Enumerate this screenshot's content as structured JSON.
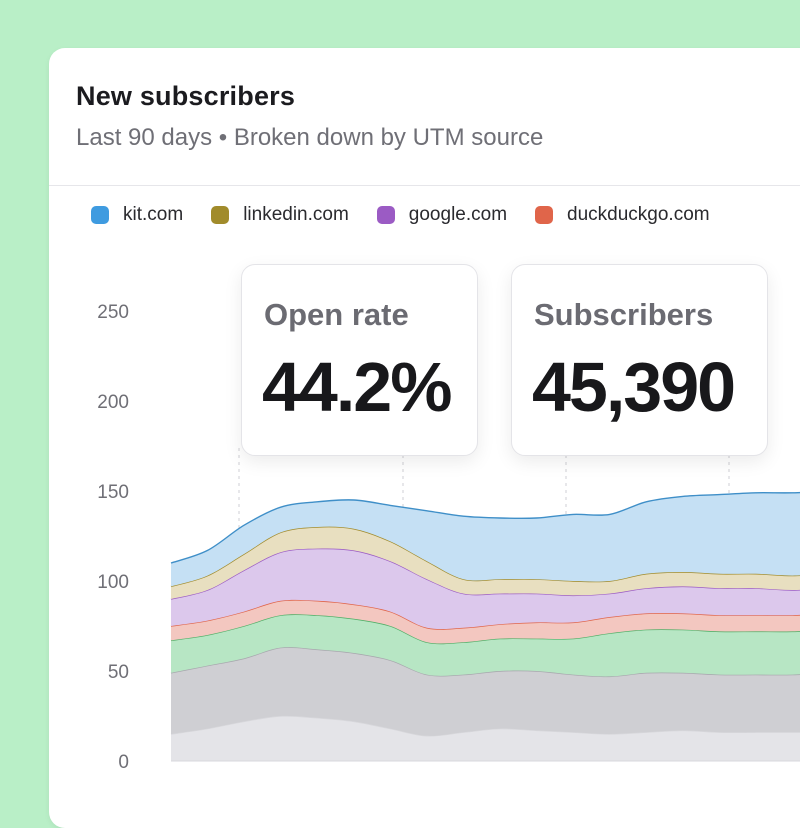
{
  "card": {
    "title": "New subscribers",
    "subtitle": "Last 90 days • Broken down by UTM source"
  },
  "legend": [
    {
      "label": "kit.com",
      "color": "#3f9be0"
    },
    {
      "label": "linkedin.com",
      "color": "#a18b2b"
    },
    {
      "label": "google.com",
      "color": "#9b5bc4"
    },
    {
      "label": "duckduckgo.com",
      "color": "#e0654a"
    }
  ],
  "stats": {
    "open_rate_label": "Open rate",
    "open_rate_value": "44.2%",
    "subscribers_label": "Subscribers",
    "subscribers_value": "45,390"
  },
  "chart_data": {
    "type": "area",
    "stacked": true,
    "x": [
      0,
      1,
      2,
      3,
      4,
      5,
      6,
      7,
      8,
      9,
      10,
      11,
      12,
      13,
      14,
      15,
      16,
      17,
      18
    ],
    "ylim": [
      0,
      250
    ],
    "yticks": [
      0,
      50,
      100,
      150,
      200,
      250
    ],
    "grid": "vertical dashed",
    "legend_position": "top",
    "series": [
      {
        "color": "#e4e4e8",
        "values": [
          15,
          18,
          22,
          25,
          24,
          22,
          18,
          14,
          16,
          18,
          17,
          16,
          15,
          16,
          17,
          16,
          16,
          16,
          16
        ]
      },
      {
        "color": "#cfcfd3",
        "values": [
          34,
          35,
          35,
          38,
          38,
          38,
          38,
          34,
          32,
          32,
          33,
          32,
          32,
          33,
          32,
          32,
          32,
          32,
          33
        ]
      },
      {
        "color": "#b7e6c4",
        "values": [
          18,
          17,
          18,
          18,
          19,
          19,
          19,
          18,
          18,
          18,
          18,
          20,
          24,
          24,
          24,
          24,
          24,
          24,
          24
        ]
      },
      {
        "color": "#f3c7c0",
        "values": [
          8,
          8,
          8,
          8,
          8,
          8,
          8,
          8,
          8,
          8,
          9,
          9,
          9,
          9,
          9,
          9,
          9,
          9,
          9
        ]
      },
      {
        "color": "#dcc8ec",
        "values": [
          15,
          17,
          23,
          27,
          29,
          30,
          28,
          27,
          19,
          17,
          16,
          15,
          13,
          14,
          15,
          15,
          15,
          14,
          14
        ]
      },
      {
        "name": "linkedin.com",
        "color": "#e8dfc0",
        "values": [
          7,
          8,
          9,
          11,
          12,
          12,
          11,
          10,
          8,
          8,
          8,
          8,
          7,
          8,
          8,
          8,
          8,
          8,
          8
        ]
      },
      {
        "name": "kit.com",
        "color": "#c5e0f4",
        "values": [
          13,
          14,
          16,
          14,
          14,
          16,
          20,
          28,
          35,
          34,
          34,
          37,
          37,
          40,
          42,
          44,
          45,
          46,
          46
        ]
      }
    ]
  }
}
